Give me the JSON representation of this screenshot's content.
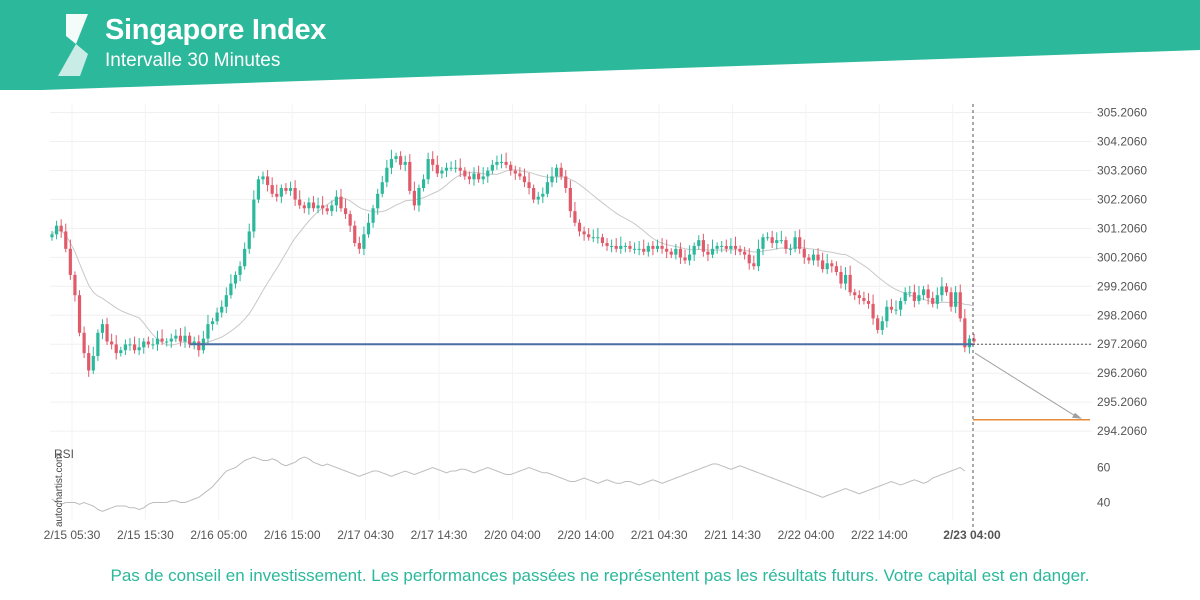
{
  "header": {
    "title": "Singapore Index",
    "subtitle": "Intervalle 30 Minutes",
    "brand_color": "#2bb89b"
  },
  "watermark": "autochartist.com",
  "disclaimer": "Pas de conseil en investissement. Les performances passées ne représentent pas les résultats futurs. Votre capital est en danger.",
  "chart_data": {
    "type": "candlestick",
    "price_axis": {
      "ticks": [
        "305.2060",
        "304.2060",
        "303.2060",
        "302.2060",
        "301.2060",
        "300.2060",
        "299.2060",
        "298.2060",
        "297.2060",
        "296.2060",
        "295.2060",
        "294.2060"
      ],
      "range": [
        293.9,
        305.5
      ]
    },
    "time_axis": {
      "ticks": [
        "2/15 05:30",
        "2/15 15:30",
        "2/16 05:00",
        "2/16 15:00",
        "2/17 04:30",
        "2/17 14:30",
        "2/20 04:00",
        "2/20 14:00",
        "2/21 04:30",
        "2/21 14:30",
        "2/22 04:00",
        "2/22 14:00",
        "2/23 04:00"
      ],
      "highlighted": "2/23 04:00",
      "bar_count": 200
    },
    "candles_close": [
      301.0,
      301.3,
      301.1,
      300.5,
      299.6,
      298.9,
      297.6,
      296.9,
      296.3,
      296.8,
      297.6,
      297.9,
      297.3,
      297.2,
      296.9,
      297.0,
      297.2,
      297.2,
      297.0,
      297.1,
      297.3,
      297.2,
      297.2,
      297.4,
      297.3,
      297.3,
      297.4,
      297.5,
      297.3,
      297.5,
      297.2,
      297.3,
      297.0,
      297.4,
      297.9,
      298.0,
      298.3,
      298.5,
      298.9,
      299.3,
      299.6,
      299.9,
      300.5,
      301.1,
      302.2,
      302.9,
      303.0,
      302.7,
      302.4,
      302.3,
      302.6,
      302.5,
      302.6,
      302.2,
      302.0,
      301.9,
      302.1,
      301.9,
      302.0,
      301.9,
      301.8,
      302.0,
      302.3,
      301.9,
      301.7,
      301.3,
      300.7,
      300.5,
      301.0,
      301.4,
      301.9,
      302.4,
      302.8,
      303.3,
      303.6,
      303.7,
      303.4,
      303.5,
      302.5,
      302.0,
      302.6,
      302.9,
      303.6,
      303.4,
      303.1,
      303.2,
      303.3,
      303.3,
      303.3,
      303.2,
      303.0,
      302.9,
      303.1,
      302.9,
      303.0,
      303.2,
      303.4,
      303.5,
      303.5,
      303.4,
      303.2,
      303.1,
      303.0,
      302.8,
      302.6,
      302.2,
      302.3,
      302.4,
      302.8,
      303.0,
      303.3,
      303.0,
      302.6,
      301.8,
      301.4,
      301.1,
      301.0,
      300.9,
      300.9,
      300.9,
      300.7,
      300.6,
      300.6,
      300.5,
      300.6,
      300.6,
      300.5,
      300.5,
      300.5,
      300.4,
      300.6,
      300.5,
      300.6,
      300.5,
      300.4,
      300.3,
      300.5,
      300.2,
      300.1,
      300.3,
      300.6,
      300.8,
      300.4,
      300.3,
      300.5,
      300.6,
      300.6,
      300.5,
      300.6,
      300.5,
      300.4,
      300.3,
      300.0,
      299.9,
      300.5,
      300.9,
      300.9,
      300.7,
      300.8,
      300.8,
      300.5,
      300.5,
      300.9,
      300.5,
      300.2,
      300.1,
      300.3,
      300.1,
      299.8,
      300.0,
      299.9,
      299.7,
      299.3,
      299.6,
      299.0,
      298.9,
      298.8,
      298.7,
      298.6,
      298.1,
      297.7,
      298.0,
      298.5,
      298.4,
      298.4,
      298.7,
      299.0,
      299.0,
      298.7,
      298.9,
      299.1,
      298.8,
      298.6,
      298.9,
      299.2,
      299.0,
      298.5,
      299.0,
      298.1,
      297.1,
      297.4,
      297.3
    ],
    "moving_average_label": "",
    "support_level": 297.206,
    "current_price": 297.206,
    "target_price": 294.6,
    "pattern_start_index": 30,
    "pattern_end_index": 200,
    "projection_end_index": 213,
    "rsi": {
      "label": "RSI",
      "ticks": [
        "60",
        "40"
      ],
      "range": [
        30,
        70
      ],
      "values": [
        42,
        40,
        39,
        40,
        40,
        40,
        39,
        40,
        39,
        38,
        36,
        35,
        36,
        37,
        38,
        38,
        38,
        37,
        37,
        36,
        37,
        39,
        40,
        40,
        40,
        40,
        41,
        41,
        40,
        40,
        41,
        42,
        43,
        45,
        47,
        49,
        52,
        55,
        58,
        59,
        60,
        62,
        64,
        65,
        66,
        65,
        64,
        64,
        65,
        64,
        62,
        61,
        62,
        63,
        65,
        66,
        65,
        63,
        62,
        61,
        62,
        61,
        60,
        59,
        58,
        57,
        56,
        55,
        56,
        57,
        58,
        58,
        57,
        56,
        55,
        56,
        57,
        58,
        57,
        56,
        57,
        58,
        59,
        60,
        59,
        58,
        57,
        58,
        58,
        59,
        59,
        58,
        57,
        58,
        59,
        60,
        59,
        58,
        57,
        56,
        56,
        57,
        58,
        59,
        60,
        59,
        58,
        57,
        57,
        56,
        55,
        54,
        53,
        52,
        52,
        53,
        54,
        53,
        52,
        51,
        52,
        53,
        52,
        51,
        51,
        52,
        52,
        51,
        50,
        51,
        52,
        53,
        52,
        51,
        52,
        53,
        54,
        55,
        56,
        57,
        58,
        59,
        60,
        61,
        62,
        62,
        61,
        60,
        59,
        60,
        61,
        60,
        59,
        58,
        57,
        56,
        55,
        54,
        53,
        52,
        51,
        50,
        49,
        48,
        47,
        46,
        45,
        44,
        43,
        44,
        45,
        46,
        47,
        48,
        47,
        46,
        45,
        46,
        47,
        48,
        49,
        50,
        51,
        52,
        51,
        50,
        51,
        52,
        53,
        52,
        51,
        52,
        54,
        55,
        56,
        57,
        58,
        59,
        60,
        58
      ]
    },
    "colors": {
      "up": "#2bb89b",
      "down": "#e05a6a",
      "support_line": "#4a6fa5",
      "target_line": "#e8883a",
      "moving_average": "#c8c8c8",
      "projection_arrow": "#a0a0a0"
    }
  }
}
